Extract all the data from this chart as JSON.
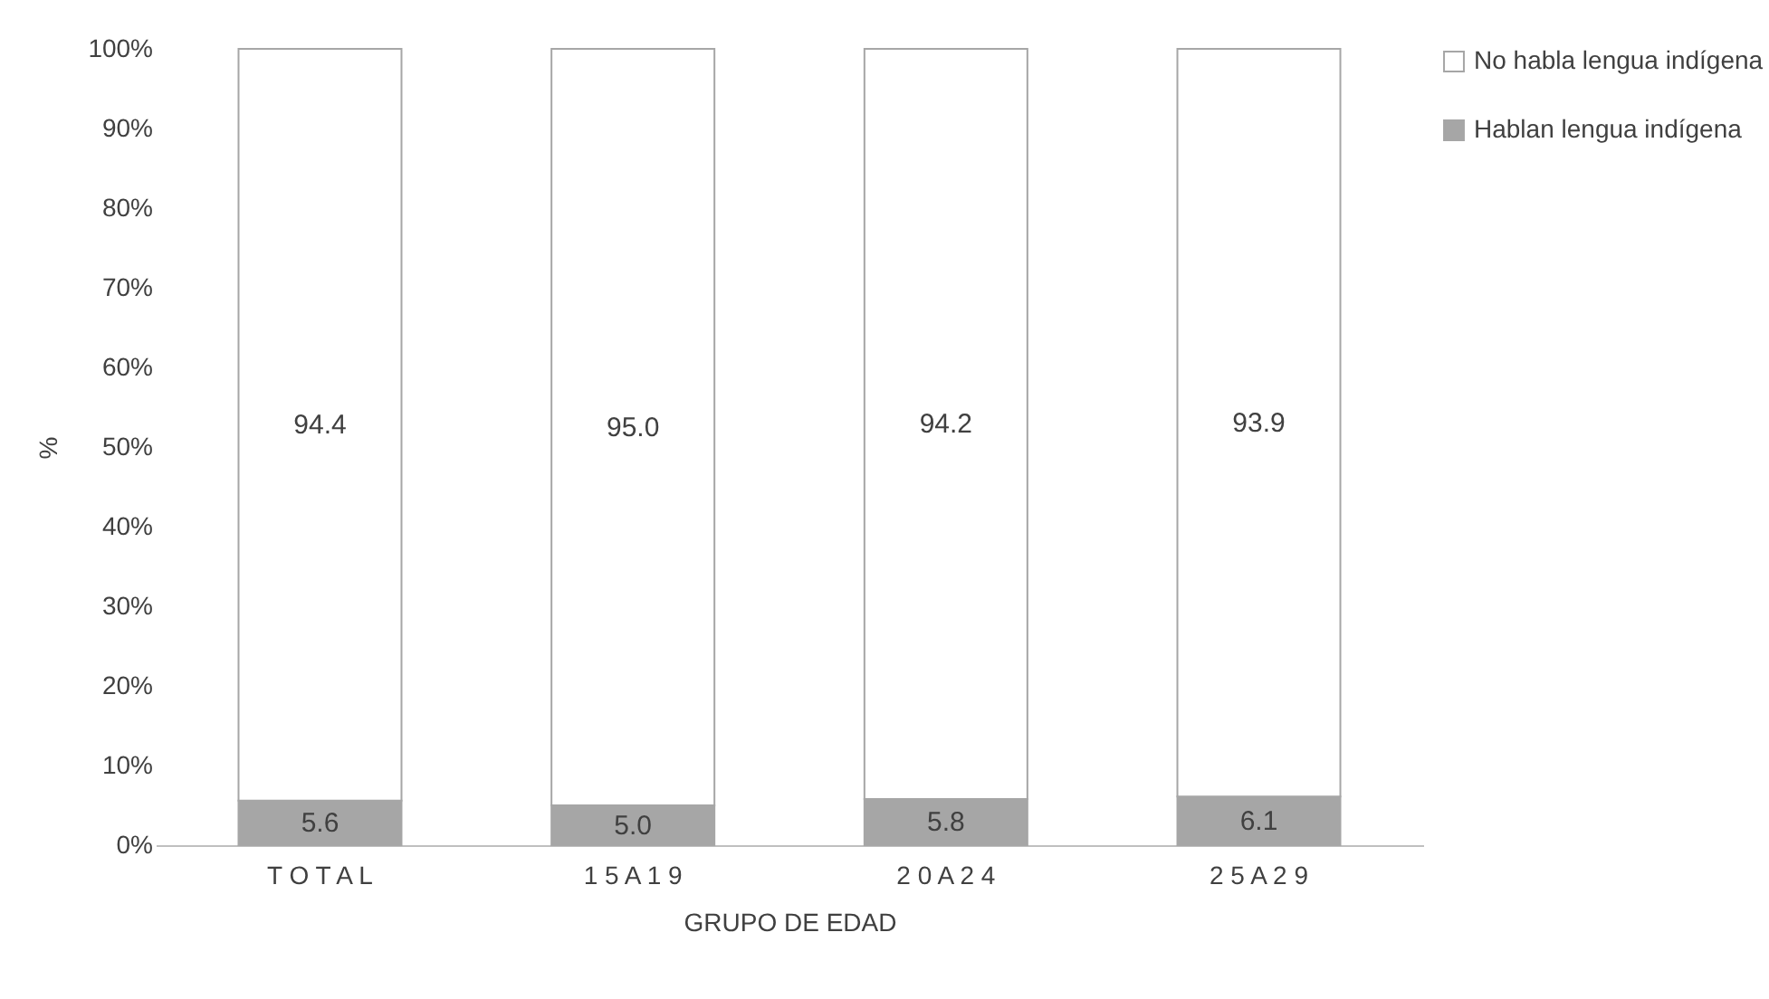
{
  "chart_data": {
    "type": "bar",
    "stacked": true,
    "xlabel": "GRUPO DE EDAD",
    "ylabel": "%",
    "categories": [
      "T O T A L",
      "1 5  A  1 9",
      "2 0  A  2 4",
      "2 5  A  2 9"
    ],
    "series": [
      {
        "name": "Hablan lengua indígena",
        "color": "#a6a6a6",
        "values": [
          5.6,
          5.0,
          5.8,
          6.1
        ],
        "value_labels": [
          "5.6",
          "5.0",
          "5.8",
          "6.1"
        ]
      },
      {
        "name": "No habla lengua indígena",
        "color": "#ffffff",
        "values": [
          94.4,
          95.0,
          94.2,
          93.9
        ],
        "value_labels": [
          "94.4",
          "95.0",
          "94.2",
          "93.9"
        ]
      }
    ],
    "ylim": [
      0,
      100
    ],
    "yticks": [
      {
        "value": 0,
        "label": "0%"
      },
      {
        "value": 10,
        "label": "10%"
      },
      {
        "value": 20,
        "label": "20%"
      },
      {
        "value": 30,
        "label": "30%"
      },
      {
        "value": 40,
        "label": "40%"
      },
      {
        "value": 50,
        "label": "50%"
      },
      {
        "value": 60,
        "label": "60%"
      },
      {
        "value": 70,
        "label": "70%"
      },
      {
        "value": 80,
        "label": "80%"
      },
      {
        "value": 90,
        "label": "90%"
      },
      {
        "value": 100,
        "label": "100%"
      }
    ],
    "legend": "right",
    "grid": false
  }
}
